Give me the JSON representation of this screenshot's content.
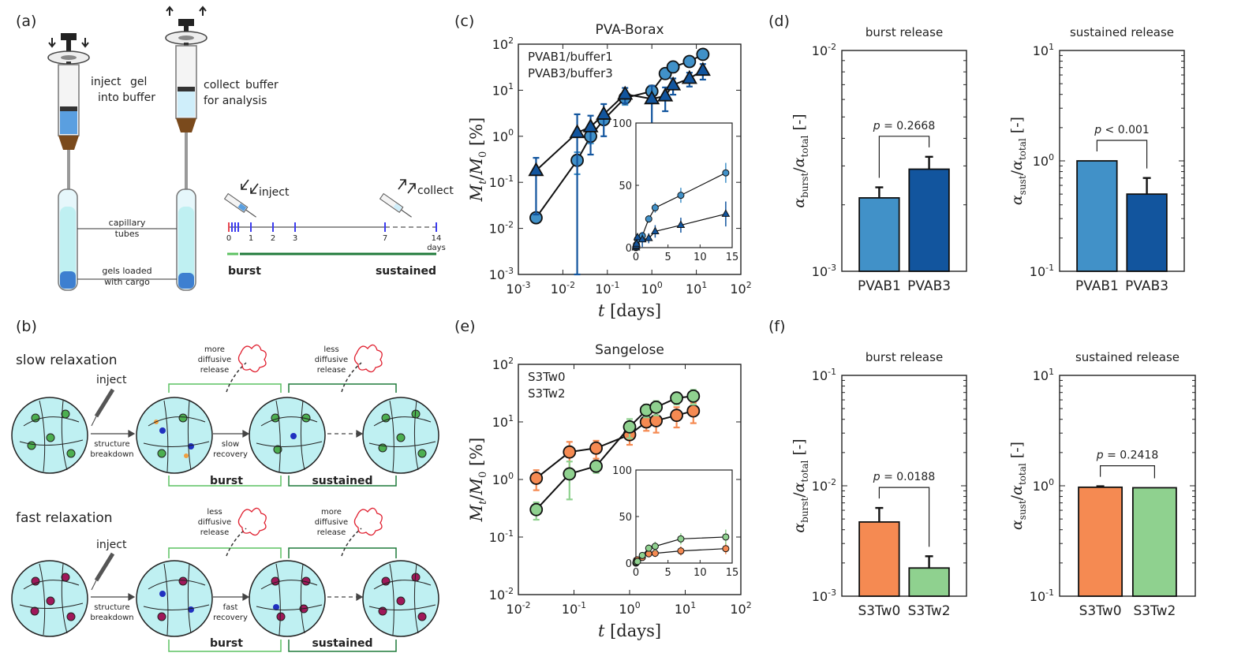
{
  "panel_labels": {
    "a": "(a)",
    "b": "(b)",
    "c": "(c)",
    "d": "(d)",
    "e": "(e)",
    "f": "(f)"
  },
  "panel_a": {
    "inject_word": "inject",
    "inject_rest": "gel",
    "inject_line2": "into buffer",
    "collect_word": "collect",
    "collect_rest": "buffer",
    "collect_line2": "for analysis",
    "capillary_1": "capillary",
    "capillary_2": "tubes",
    "gels_1": "gels loaded",
    "gels_2": "with cargo",
    "timeline_inject": "inject",
    "timeline_collect": "collect",
    "ticks": [
      "0",
      "1",
      "2",
      "3",
      "7",
      "14"
    ],
    "days": "days",
    "burst": "burst",
    "sustained": "sustained"
  },
  "panel_b": {
    "slow_title": "slow relaxation",
    "fast_title": "fast relaxation",
    "inject": "inject",
    "structure_1": "structure",
    "structure_2": "breakdown",
    "slow_rec_1": "slow",
    "slow_rec_2": "recovery",
    "fast_rec_1": "fast",
    "fast_rec_2": "recovery",
    "more_1": "more",
    "less_1": "less",
    "diffusive": "diffusive",
    "release": "release",
    "burst": "burst",
    "sustained": "sustained"
  },
  "colors": {
    "pvab1": "#4191c8",
    "pvab3": "#12559e",
    "s3tw0": "#f58a52",
    "s3tw2": "#8fd18f",
    "inject_red": "#e8474f",
    "collect_blue": "#3c3cf0",
    "burst_green": "#5cc262",
    "sustained_green": "#1f7a3a",
    "gel": "#bff0f2"
  },
  "chart_data": [
    {
      "id": "c",
      "type": "line",
      "scale": "log-log",
      "title": "PVA-Borax",
      "xlabel_var": "t",
      "xlabel_unit": "[days]",
      "ylabel": "Mt/M0 [%]",
      "xlim": [
        0.001,
        100
      ],
      "ylim": [
        0.001,
        100
      ],
      "xticks": [
        "10-3",
        "10-2",
        "10-1",
        "100",
        "101",
        "102"
      ],
      "yticks": [
        "10-3",
        "10-2",
        "10-1",
        "100",
        "101",
        "102"
      ],
      "legend": "top-left",
      "series": [
        {
          "name": "PVAB1/buffer1",
          "marker": "circle",
          "x": [
            0.0025,
            0.021,
            0.042,
            0.083,
            0.25,
            1,
            2,
            3,
            7,
            14
          ],
          "y": [
            0.017,
            0.3,
            1.0,
            2.3,
            6.8,
            9.5,
            23,
            32,
            42,
            60
          ],
          "err": [
            0,
            0.15,
            0.3,
            0.5,
            2,
            3,
            3,
            4,
            6,
            8
          ]
        },
        {
          "name": "PVAB3/buffer3",
          "marker": "triangle",
          "x": [
            0.0025,
            0.021,
            0.042,
            0.083,
            0.25,
            1,
            2,
            3,
            7,
            14
          ],
          "y": [
            0.18,
            1.2,
            1.6,
            3.0,
            8.2,
            6.5,
            7.5,
            13,
            18,
            27
          ],
          "err": [
            0.16,
            1.8,
            1.2,
            2,
            3,
            6,
            4,
            5,
            6,
            10
          ]
        }
      ],
      "inset": {
        "xlim": [
          0,
          15
        ],
        "ylim": [
          0,
          100
        ],
        "xticks": [
          "0",
          "5",
          "10",
          "15"
        ],
        "yticks": [
          "0",
          "50",
          "100"
        ]
      }
    },
    {
      "id": "d1",
      "type": "bar",
      "scale": "log-y",
      "title": "burst release",
      "categories": [
        "PVAB1",
        "PVAB3"
      ],
      "values": [
        0.00215,
        0.0029
      ],
      "err": [
        0.00025,
        0.0004
      ],
      "ylim": [
        0.001,
        0.01
      ],
      "yticks": [
        "10-3",
        "10-2"
      ],
      "ylabel": "αburst/αtotal [-]",
      "pvalue": "p = 0.2668"
    },
    {
      "id": "d2",
      "type": "bar",
      "scale": "log-y",
      "title": "sustained release",
      "categories": [
        "PVAB1",
        "PVAB3"
      ],
      "values": [
        1.0,
        0.5
      ],
      "err": [
        0,
        0.2
      ],
      "ylim": [
        0.1,
        10
      ],
      "yticks": [
        "10-1",
        "100",
        "101"
      ],
      "ylabel": "αsust/αtotal [-]",
      "pvalue": "p < 0.001"
    },
    {
      "id": "e",
      "type": "line",
      "scale": "log-log",
      "title": "Sangelose",
      "xlabel_var": "t",
      "xlabel_unit": "[days]",
      "ylabel": "Mt/M0 [%]",
      "xlim": [
        0.01,
        100
      ],
      "ylim": [
        0.01,
        100
      ],
      "xticks": [
        "10-2",
        "10-1",
        "100",
        "101",
        "102"
      ],
      "yticks": [
        "10-2",
        "10-1",
        "100",
        "101",
        "102"
      ],
      "legend": "top-left",
      "series": [
        {
          "name": "S3Tw0",
          "marker": "circle",
          "x": [
            0.021,
            0.083,
            0.25,
            1,
            2,
            3,
            7,
            14
          ],
          "y": [
            1.05,
            3.0,
            3.5,
            6.0,
            10,
            10.5,
            13,
            15.5
          ],
          "err": [
            0.4,
            1.5,
            1.2,
            2,
            3,
            4,
            5,
            6
          ]
        },
        {
          "name": "S3Tw2",
          "marker": "circle",
          "x": [
            0.021,
            0.083,
            0.25,
            1,
            2,
            3,
            7,
            14
          ],
          "y": [
            0.3,
            1.25,
            1.7,
            8.2,
            16,
            18,
            26,
            28
          ],
          "err": [
            0.1,
            0.8,
            0.4,
            3,
            4,
            5,
            6,
            8
          ]
        }
      ],
      "inset": {
        "xlim": [
          0,
          15
        ],
        "ylim": [
          0,
          100
        ],
        "xticks": [
          "0",
          "5",
          "10",
          "15"
        ],
        "yticks": [
          "0",
          "50",
          "100"
        ]
      }
    },
    {
      "id": "f1",
      "type": "bar",
      "scale": "log-y",
      "title": "burst release",
      "categories": [
        "S3Tw0",
        "S3Tw2"
      ],
      "values": [
        0.0047,
        0.0018
      ],
      "err": [
        0.0016,
        0.0005
      ],
      "ylim": [
        0.001,
        0.1
      ],
      "yticks": [
        "10-3",
        "10-2",
        "10-1"
      ],
      "ylabel": "αburst/αtotal [-]",
      "pvalue": "p = 0.0188"
    },
    {
      "id": "f2",
      "type": "bar",
      "scale": "log-y",
      "title": "sustained release",
      "categories": [
        "S3Tw0",
        "S3Tw2"
      ],
      "values": [
        0.97,
        0.96
      ],
      "err": [
        0.02,
        0
      ],
      "ylim": [
        0.1,
        10
      ],
      "yticks": [
        "10-1",
        "100",
        "101"
      ],
      "ylabel": "αsust/αtotal [-]",
      "pvalue": "p = 0.2418"
    }
  ]
}
